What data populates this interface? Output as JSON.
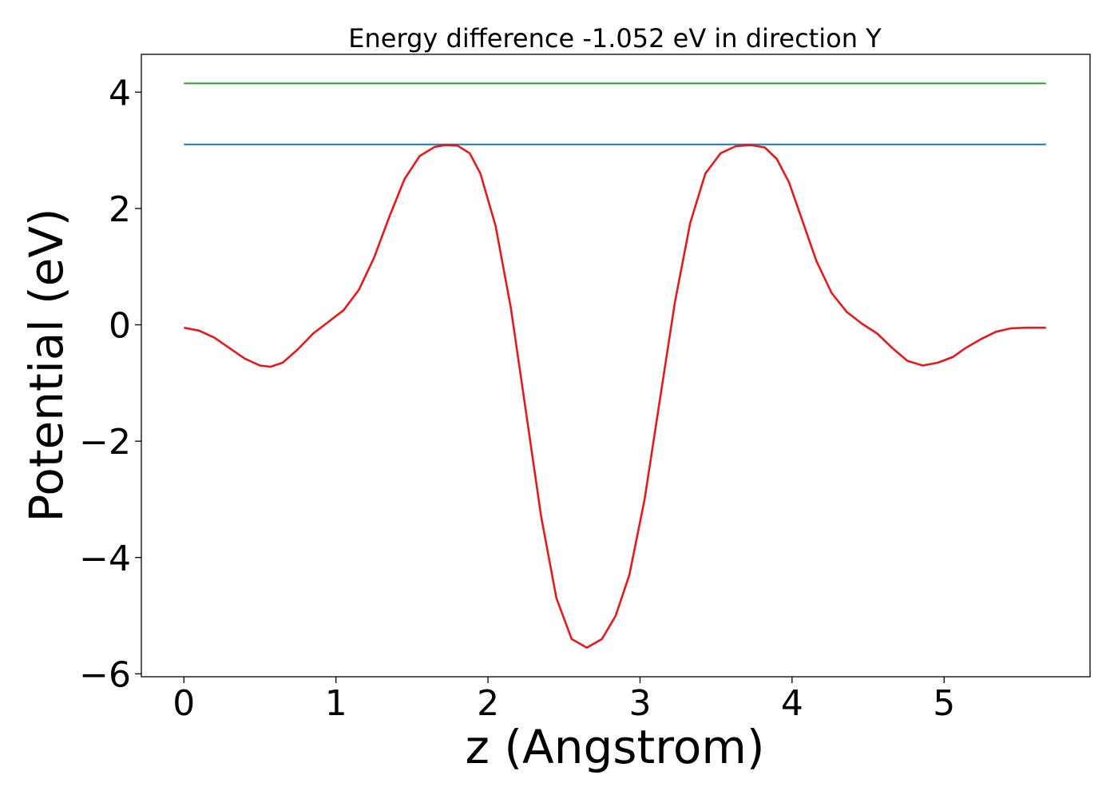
{
  "chart_data": {
    "type": "line",
    "title": "Energy difference -1.052 eV in direction Y",
    "xlabel": "z (Angstrom)",
    "ylabel": "Potential (eV)",
    "xlim": [
      -0.28,
      5.96
    ],
    "ylim": [
      -6.05,
      4.65
    ],
    "xticks": [
      0,
      1,
      2,
      3,
      4,
      5
    ],
    "xtick_labels": [
      "0",
      "1",
      "2",
      "3",
      "4",
      "5"
    ],
    "yticks": [
      4,
      2,
      0,
      -2,
      -4,
      -6
    ],
    "ytick_labels": [
      "4",
      "2",
      "0",
      "−2",
      "−4",
      "−6"
    ],
    "grid": false,
    "series": [
      {
        "color": "#2ca02c",
        "x": [
          0,
          5.67
        ],
        "y": [
          4.15,
          4.15
        ]
      },
      {
        "color": "#1f77b4",
        "x": [
          0,
          5.67
        ],
        "y": [
          3.1,
          3.1
        ]
      },
      {
        "color": "#e31a1c",
        "x": [
          0.0,
          0.1,
          0.2,
          0.3,
          0.4,
          0.5,
          0.57,
          0.65,
          0.75,
          0.85,
          0.95,
          1.05,
          1.15,
          1.25,
          1.35,
          1.45,
          1.55,
          1.65,
          1.72,
          1.8,
          1.88,
          1.95,
          2.05,
          2.15,
          2.25,
          2.35,
          2.45,
          2.55,
          2.65,
          2.75,
          2.84,
          2.93,
          3.03,
          3.13,
          3.23,
          3.33,
          3.43,
          3.53,
          3.63,
          3.73,
          3.82,
          3.9,
          3.98,
          4.06,
          4.16,
          4.26,
          4.36,
          4.46,
          4.56,
          4.66,
          4.76,
          4.86,
          4.96,
          5.06,
          5.14,
          5.24,
          5.34,
          5.44,
          5.54,
          5.67
        ],
        "y": [
          -0.05,
          -0.1,
          -0.22,
          -0.4,
          -0.58,
          -0.7,
          -0.72,
          -0.65,
          -0.42,
          -0.15,
          0.05,
          0.25,
          0.6,
          1.15,
          1.85,
          2.5,
          2.9,
          3.06,
          3.09,
          3.08,
          2.95,
          2.6,
          1.7,
          0.3,
          -1.5,
          -3.3,
          -4.7,
          -5.4,
          -5.55,
          -5.4,
          -5.0,
          -4.3,
          -3.0,
          -1.3,
          0.4,
          1.75,
          2.6,
          2.95,
          3.07,
          3.09,
          3.05,
          2.85,
          2.45,
          1.85,
          1.1,
          0.55,
          0.22,
          0.02,
          -0.15,
          -0.4,
          -0.62,
          -0.7,
          -0.65,
          -0.55,
          -0.4,
          -0.25,
          -0.12,
          -0.06,
          -0.05,
          -0.05
        ]
      }
    ]
  }
}
